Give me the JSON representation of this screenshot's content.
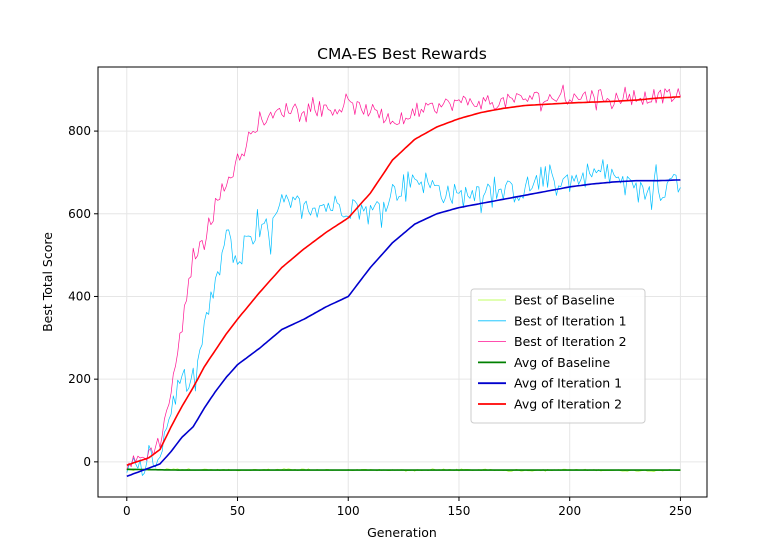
{
  "chart_data": {
    "type": "line",
    "title": "CMA-ES Best Rewards",
    "xlabel": "Generation",
    "ylabel": "Best Total Score",
    "xlim": [
      -13,
      262
    ],
    "ylim": [
      -85,
      955
    ],
    "xticks": [
      0,
      50,
      100,
      150,
      200,
      250
    ],
    "yticks": [
      0,
      200,
      400,
      600,
      800
    ],
    "grid": true,
    "legend_position": "center-right",
    "series": [
      {
        "name": "Best of Baseline",
        "color": "#adff2f",
        "style": "thin",
        "x": [
          0,
          25,
          50,
          75,
          100,
          125,
          150,
          175,
          200,
          225,
          250
        ],
        "y": [
          -20,
          -18,
          -20,
          -18,
          -20,
          -20,
          -19,
          -21,
          -19,
          -21,
          -20
        ],
        "noise": 2
      },
      {
        "name": "Best of Iteration 1",
        "color": "#00bfff",
        "style": "thin",
        "x": [
          0,
          10,
          15,
          20,
          25,
          30,
          35,
          40,
          45,
          50,
          55,
          60,
          65,
          70,
          80,
          90,
          100,
          110,
          120,
          130,
          140,
          150,
          160,
          170,
          180,
          190,
          200,
          210,
          220,
          230,
          240,
          250
        ],
        "y": [
          -30,
          -10,
          20,
          130,
          210,
          160,
          330,
          420,
          550,
          480,
          520,
          560,
          560,
          620,
          620,
          620,
          620,
          600,
          650,
          690,
          660,
          640,
          660,
          650,
          660,
          690,
          680,
          700,
          690,
          650,
          660,
          680
        ],
        "noise": 30
      },
      {
        "name": "Best of Iteration 2",
        "color": "#ff1493",
        "style": "thin",
        "x": [
          0,
          10,
          15,
          20,
          25,
          30,
          35,
          40,
          45,
          50,
          55,
          60,
          65,
          70,
          80,
          90,
          100,
          110,
          120,
          130,
          140,
          150,
          160,
          170,
          180,
          190,
          200,
          210,
          220,
          230,
          240,
          250
        ],
        "y": [
          -10,
          20,
          50,
          170,
          330,
          500,
          530,
          640,
          670,
          730,
          770,
          830,
          830,
          850,
          860,
          850,
          860,
          850,
          820,
          840,
          860,
          870,
          870,
          870,
          880,
          880,
          880,
          885,
          880,
          880,
          885,
          885
        ],
        "noise": 18
      },
      {
        "name": "Avg of Baseline",
        "color": "#008000",
        "style": "thick",
        "x": [
          0,
          25,
          50,
          75,
          100,
          125,
          150,
          175,
          200,
          225,
          250
        ],
        "y": [
          -18,
          -20,
          -20,
          -20,
          -20,
          -20,
          -20,
          -20,
          -20,
          -20,
          -20
        ],
        "noise": 0
      },
      {
        "name": "Avg of Iteration 1",
        "color": "#0000cd",
        "style": "thick",
        "x": [
          0,
          10,
          15,
          20,
          25,
          30,
          35,
          40,
          45,
          50,
          60,
          70,
          80,
          90,
          100,
          110,
          120,
          130,
          140,
          150,
          160,
          170,
          180,
          190,
          200,
          210,
          220,
          230,
          240,
          250
        ],
        "y": [
          -35,
          -15,
          -5,
          25,
          60,
          85,
          130,
          170,
          205,
          235,
          275,
          320,
          345,
          375,
          400,
          470,
          530,
          575,
          600,
          615,
          625,
          635,
          645,
          655,
          665,
          672,
          677,
          680,
          680,
          682
        ],
        "noise": 0
      },
      {
        "name": "Avg of Iteration 2",
        "color": "#ff0000",
        "style": "thick",
        "x": [
          0,
          10,
          15,
          20,
          25,
          30,
          35,
          40,
          45,
          50,
          60,
          70,
          80,
          90,
          100,
          110,
          120,
          130,
          140,
          150,
          160,
          170,
          180,
          190,
          200,
          210,
          220,
          230,
          240,
          250
        ],
        "y": [
          -8,
          10,
          30,
          85,
          135,
          180,
          230,
          270,
          310,
          345,
          410,
          470,
          515,
          555,
          590,
          650,
          730,
          780,
          810,
          830,
          845,
          855,
          862,
          865,
          868,
          870,
          872,
          875,
          880,
          883
        ],
        "noise": 0
      }
    ]
  }
}
